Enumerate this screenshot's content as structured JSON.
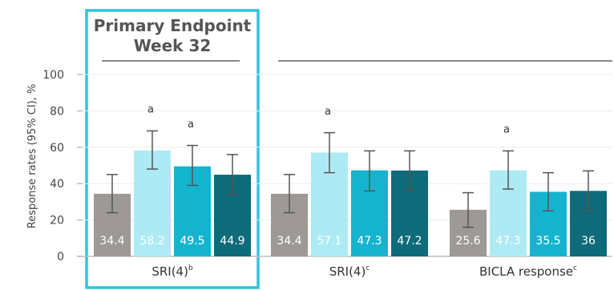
{
  "chart_data": {
    "type": "bar",
    "ylabel": "Response rates (95% CI), %",
    "ylim": [
      0,
      100
    ],
    "yticks": [
      0,
      20,
      40,
      60,
      80,
      100
    ],
    "highlight_title": [
      "Primary Endpoint",
      "Week 32"
    ],
    "colors": [
      "#9e9896",
      "#aeeaf4",
      "#14b4cf",
      "#0e6b79"
    ],
    "highlight_color": "#2ec4de",
    "groups": [
      {
        "label": "SRI(4)",
        "superscript": "b",
        "values": [
          34.4,
          58.2,
          49.5,
          44.9
        ],
        "value_labels": [
          "34.4",
          "58.2",
          "49.5",
          "44.9"
        ],
        "ci_low": [
          24,
          48,
          39,
          34
        ],
        "ci_high": [
          45,
          69,
          61,
          56
        ],
        "annotations": [
          "",
          "a",
          "a",
          ""
        ]
      },
      {
        "label": "SRI(4)",
        "superscript": "c",
        "values": [
          34.4,
          57.1,
          47.3,
          47.2
        ],
        "value_labels": [
          "34.4",
          "57.1",
          "47.3",
          "47.2"
        ],
        "ci_low": [
          24,
          46,
          36,
          36
        ],
        "ci_high": [
          45,
          68,
          58,
          58
        ],
        "annotations": [
          "",
          "a",
          "",
          ""
        ]
      },
      {
        "label": "BICLA response",
        "superscript": "c",
        "values": [
          25.6,
          47.3,
          35.5,
          36
        ],
        "value_labels": [
          "25.6",
          "47.3",
          "35.5",
          "36"
        ],
        "ci_low": [
          16,
          37,
          25,
          25
        ],
        "ci_high": [
          35,
          58,
          46,
          47
        ],
        "annotations": [
          "",
          "a",
          "",
          ""
        ]
      }
    ]
  }
}
